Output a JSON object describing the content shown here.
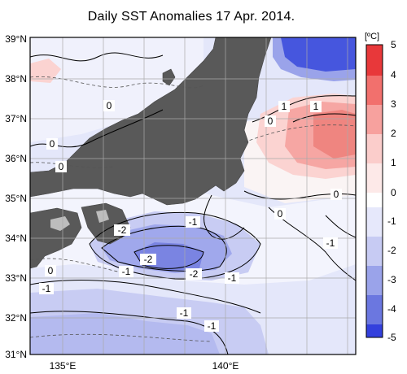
{
  "title": "Daily SST Anomalies 17 Apr. 2014.",
  "colorbar": {
    "unit": "[ºC]",
    "ticks": [
      "5",
      "4",
      "3",
      "2",
      "1",
      "0",
      "-1",
      "-2",
      "-3",
      "-4",
      "-5"
    ],
    "colors": [
      "#e8383a",
      "#f2706d",
      "#f7a19e",
      "#fbcdcb",
      "#fde9e8",
      "#ffffff",
      "#e6e8fb",
      "#c7cbf3",
      "#9aa3ea",
      "#6b77e0",
      "#3340dd"
    ]
  },
  "map": {
    "lat_labels": [
      "39°N",
      "38°N",
      "37°N",
      "36°N",
      "35°N",
      "34°N",
      "33°N",
      "32°N",
      "31°N"
    ],
    "lon_labels": [
      "135°E",
      "140°E"
    ],
    "contour_labels": [
      "1",
      "1",
      "0",
      "0",
      "0",
      "0",
      "0",
      "0",
      "0",
      "-1",
      "-1",
      "-2",
      "-2",
      "-2",
      "-1",
      "-1",
      "-1",
      "-1",
      "-1",
      "-1"
    ],
    "land_color": "#595959",
    "grid_color": "#aaaaaa"
  }
}
